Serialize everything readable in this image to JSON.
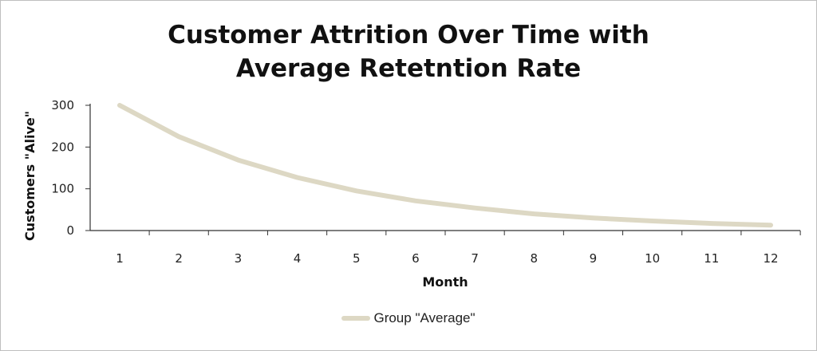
{
  "chart_data": {
    "type": "line",
    "title_lines": [
      "Customer Attrition Over Time with",
      "Average Retetntion Rate"
    ],
    "xlabel": "Month",
    "ylabel": "Customers \"Alive\"",
    "categories": [
      "1",
      "2",
      "3",
      "4",
      "5",
      "6",
      "7",
      "8",
      "9",
      "10",
      "11",
      "12"
    ],
    "x": [
      1,
      2,
      3,
      4,
      5,
      6,
      7,
      8,
      9,
      10,
      11,
      12
    ],
    "yticks": [
      0,
      100,
      200,
      300
    ],
    "ytick_labels": [
      "0",
      "100",
      "200",
      "300"
    ],
    "ylim": [
      0,
      300
    ],
    "grid": false,
    "legend_position": "bottom",
    "series": [
      {
        "name": "Group \"Average\"",
        "color": "#ddd8c4",
        "values": [
          300,
          225,
          169,
          127,
          95,
          71,
          54,
          40,
          30,
          23,
          17,
          13
        ]
      }
    ]
  }
}
